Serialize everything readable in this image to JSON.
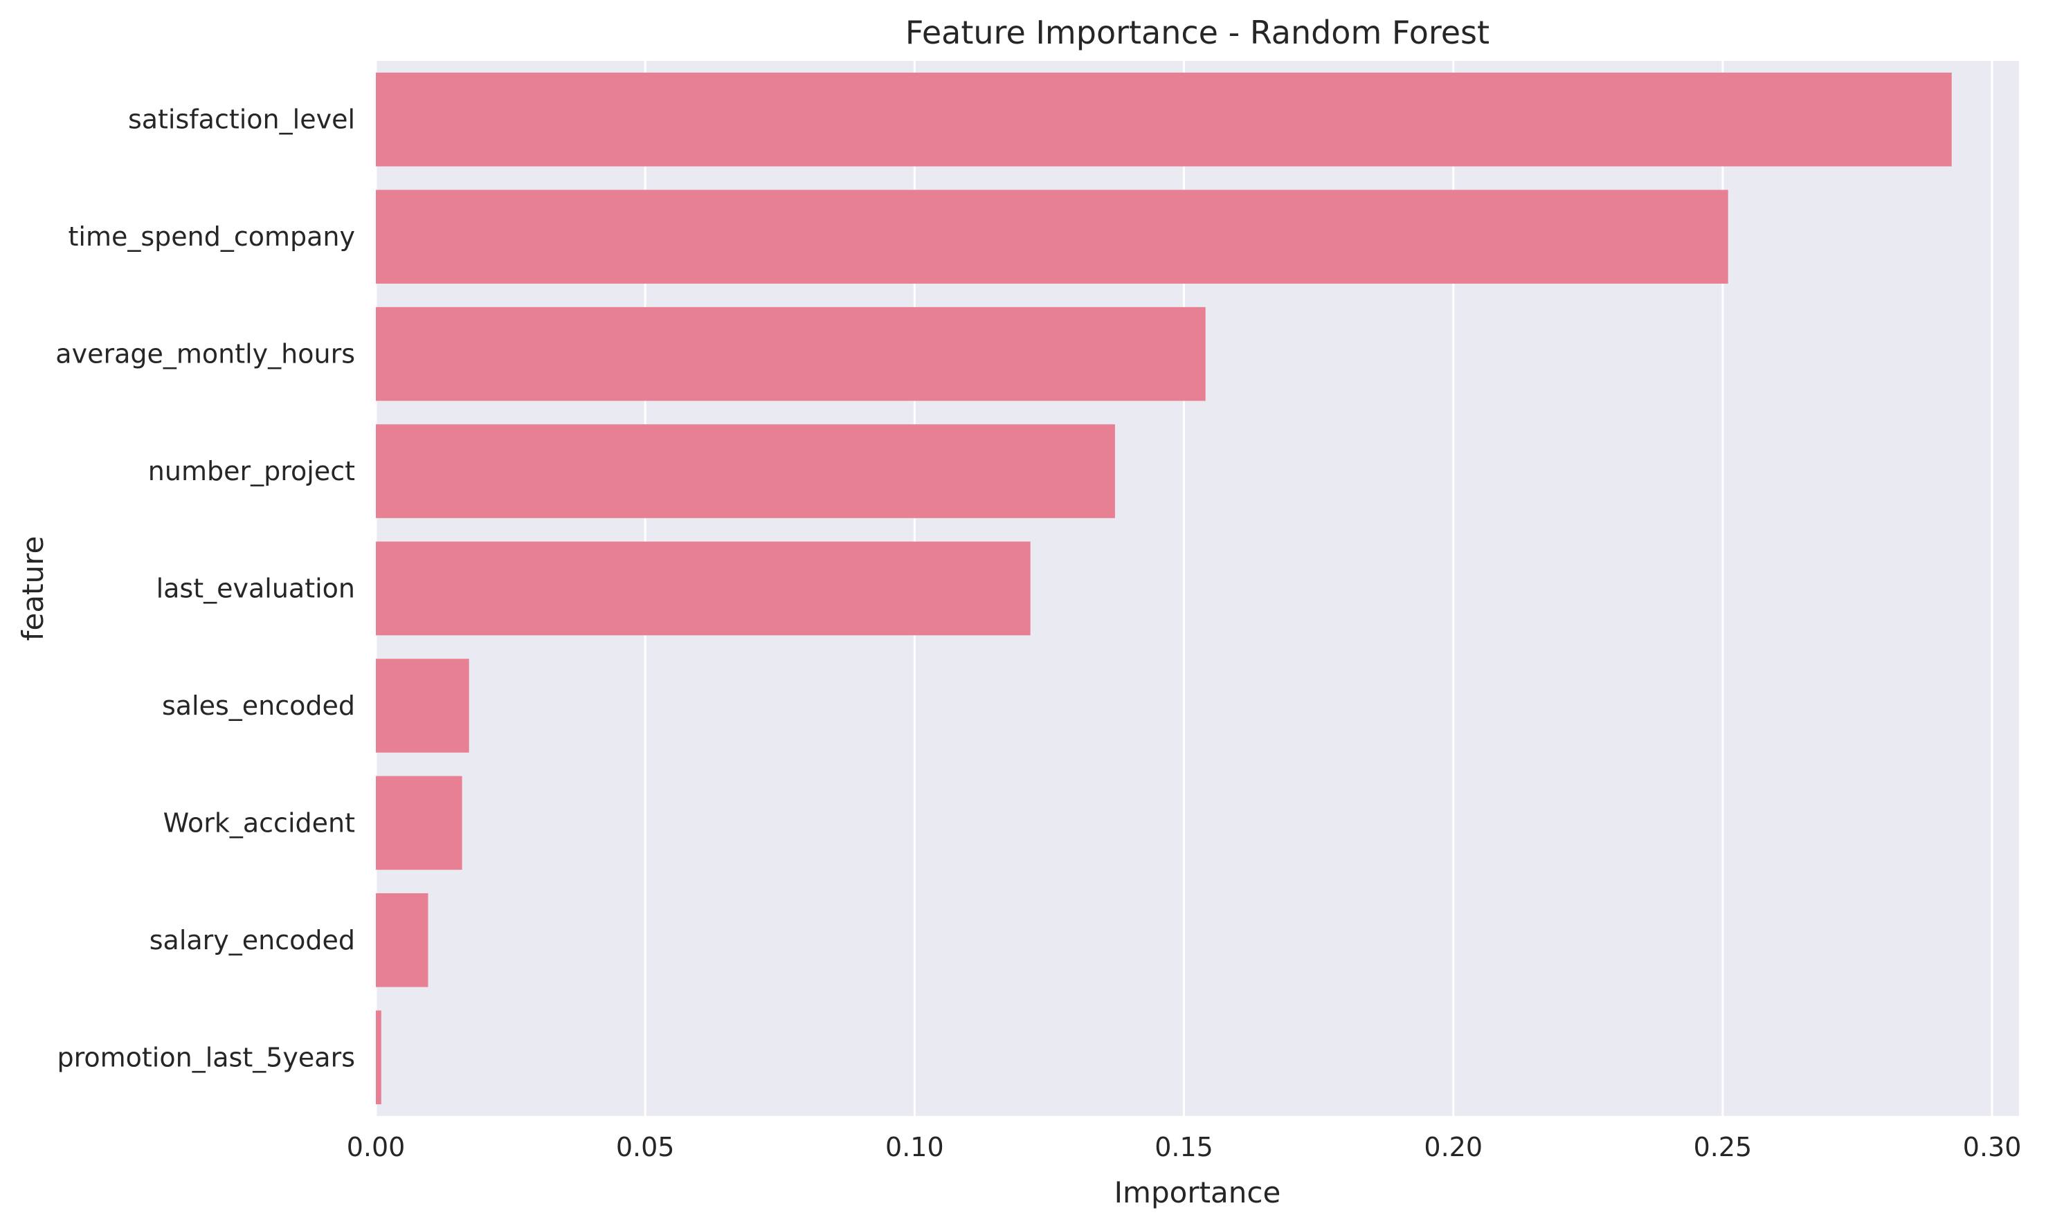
{
  "chart_data": {
    "type": "bar",
    "orientation": "horizontal",
    "title": "Feature Importance - Random Forest",
    "xlabel": "Importance",
    "ylabel": "feature",
    "categories": [
      "satisfaction_level",
      "time_spend_company",
      "average_montly_hours",
      "number_project",
      "last_evaluation",
      "sales_encoded",
      "Work_accident",
      "salary_encoded",
      "promotion_last_5years"
    ],
    "values": [
      0.2925,
      0.251,
      0.154,
      0.1372,
      0.1215,
      0.0173,
      0.016,
      0.0097,
      0.001
    ],
    "xlim": [
      0.0,
      0.305
    ],
    "xticks": [
      0.0,
      0.05,
      0.1,
      0.15,
      0.2,
      0.25,
      0.3
    ],
    "xtick_labels": [
      "0.00",
      "0.05",
      "0.10",
      "0.15",
      "0.20",
      "0.25",
      "0.30"
    ],
    "grid": true,
    "bar_color": "#e88093",
    "plot_background": "#eaeaf2",
    "grid_color": "#ffffff"
  }
}
